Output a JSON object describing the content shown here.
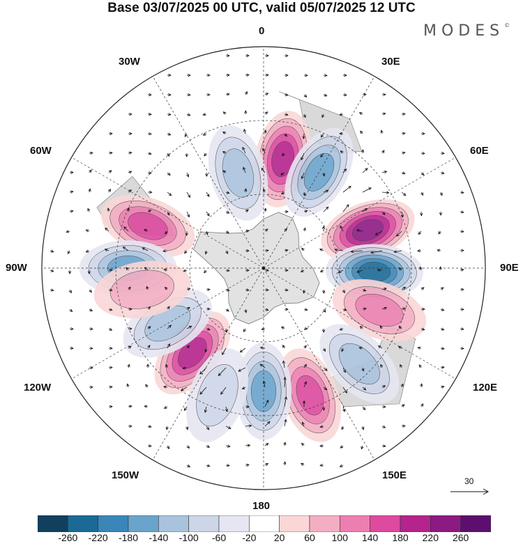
{
  "title": "Base 03/07/2025 00 UTC, valid 05/07/2025 12 UTC",
  "brand": "MODES",
  "brand_mark": "©",
  "longitude_labels": {
    "top": "0",
    "bottom": "180",
    "left": "90W",
    "right": "90E",
    "nw30": "30W",
    "ne30": "30E",
    "nw60": "60W",
    "ne60": "60E",
    "sw120": "120W",
    "se120": "120E",
    "sw150": "150W",
    "se150": "150E"
  },
  "reference_vector": "30",
  "colorbar": {
    "ticks": [
      "-260",
      "-220",
      "-180",
      "-140",
      "-100",
      "-60",
      "-20",
      "20",
      "60",
      "100",
      "140",
      "180",
      "220",
      "260"
    ],
    "colors": [
      "#11405e",
      "#1b6a96",
      "#3a86b8",
      "#6aa3cc",
      "#a9c3dd",
      "#cdd5e8",
      "#e6e6f2",
      "#ffffff",
      "#fad6d6",
      "#f4aec3",
      "#ec7fb0",
      "#dd4a9e",
      "#b5238c",
      "#8c1a83",
      "#5c0f6e"
    ]
  },
  "map_data": {
    "projection": "south polar stereographic",
    "field": "anomaly",
    "anomaly_centers": [
      {
        "lon": 70,
        "lat": -45,
        "value": 250
      },
      {
        "lon": 92,
        "lat": -45,
        "value": -240
      },
      {
        "lon": 10,
        "lat": -45,
        "value": 180
      },
      {
        "lon": 30,
        "lat": -45,
        "value": -160
      },
      {
        "lon": -15,
        "lat": -50,
        "value": -120
      },
      {
        "lon": -70,
        "lat": -40,
        "value": 140
      },
      {
        "lon": -90,
        "lat": -35,
        "value": -140
      },
      {
        "lon": 110,
        "lat": -40,
        "value": 120
      },
      {
        "lon": 135,
        "lat": -35,
        "value": -110
      },
      {
        "lon": 160,
        "lat": -35,
        "value": 150
      },
      {
        "lon": 180,
        "lat": -40,
        "value": -170
      },
      {
        "lon": -140,
        "lat": -45,
        "value": 180
      },
      {
        "lon": -120,
        "lat": -45,
        "value": -100
      },
      {
        "lon": -100,
        "lat": -40,
        "value": 90
      },
      {
        "lon": -160,
        "lat": -35,
        "value": -90
      }
    ]
  }
}
